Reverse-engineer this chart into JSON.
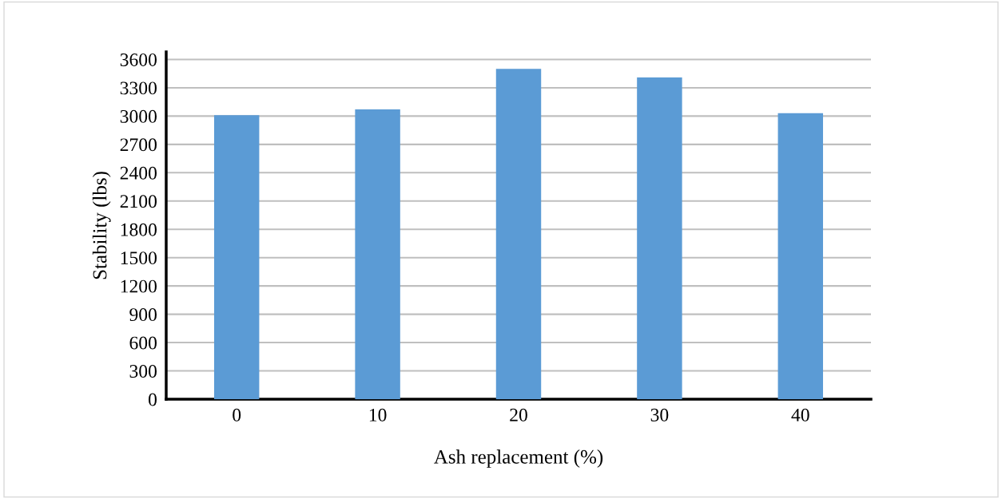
{
  "chart_data": {
    "type": "bar",
    "xlabel": "Ash replacement (%)",
    "ylabel": "Stability (lbs)",
    "categories": [
      "0",
      "10",
      "20",
      "30",
      "40"
    ],
    "values": [
      3010,
      3070,
      3500,
      3410,
      3030
    ],
    "color": "#5b9bd5",
    "ylim": [
      0,
      3680
    ],
    "yticks": [
      0,
      300,
      600,
      900,
      1200,
      1500,
      1800,
      2100,
      2400,
      2700,
      3000,
      3300,
      3600
    ],
    "grid": "y"
  }
}
